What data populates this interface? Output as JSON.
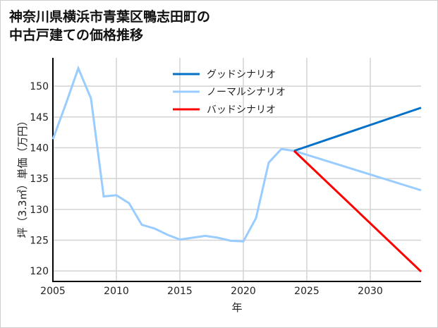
{
  "chart_data": {
    "type": "line",
    "title": [
      "神奈川県横浜市青葉区鴨志田町の",
      "中古戸建ての価格推移"
    ],
    "xlabel": "年",
    "ylabel": "坪（3.3㎡）単価（万円）",
    "xlim": [
      2005,
      2034
    ],
    "ylim": [
      118.3,
      154.6
    ],
    "xticks": [
      2005,
      2010,
      2015,
      2020,
      2025,
      2030
    ],
    "yticks": [
      120,
      125,
      130,
      135,
      140,
      145,
      150
    ],
    "grid": true,
    "legend_position": "top-center",
    "series": [
      {
        "name": "グッドシナリオ",
        "color": "#0070c8",
        "x": [
          2024,
          2034
        ],
        "y": [
          139.5,
          146.5
        ]
      },
      {
        "name": "ノーマルシナリオ",
        "color": "#99ccff",
        "x": [
          2005,
          2006,
          2007,
          2008,
          2009,
          2010,
          2011,
          2012,
          2013,
          2014,
          2015,
          2016,
          2017,
          2018,
          2019,
          2020,
          2021,
          2022,
          2023,
          2024,
          2034
        ],
        "y": [
          141.4,
          147.0,
          152.9,
          148.0,
          132.1,
          132.3,
          131.0,
          127.5,
          126.9,
          125.9,
          125.1,
          125.4,
          125.7,
          125.4,
          124.9,
          124.8,
          128.6,
          137.6,
          139.8,
          139.5,
          133.1
        ]
      },
      {
        "name": "バッドシナリオ",
        "color": "#ff0000",
        "x": [
          2024,
          2034
        ],
        "y": [
          139.5,
          119.9
        ]
      }
    ]
  }
}
